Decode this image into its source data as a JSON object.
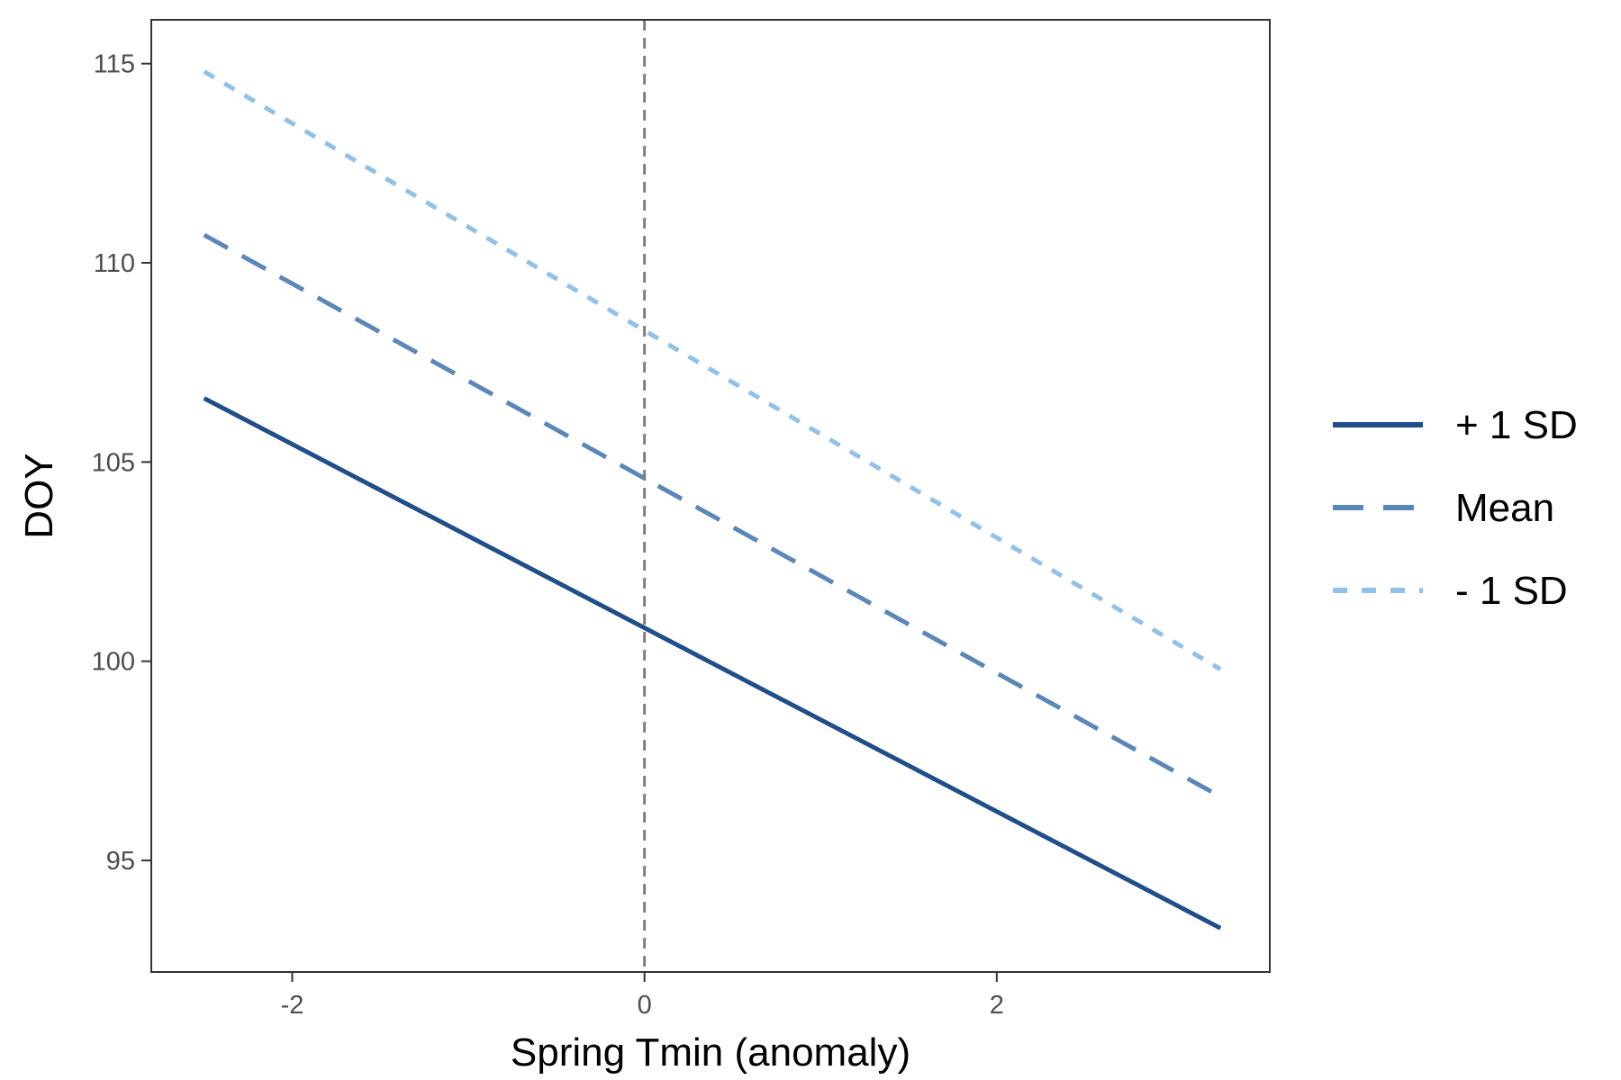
{
  "chart_data": {
    "type": "line",
    "xlabel": "Spring Tmin (anomaly)",
    "ylabel": "DOY",
    "xlim": [
      -2.8,
      3.55
    ],
    "ylim": [
      92.2,
      116.1
    ],
    "x_ticks": [
      -2,
      0,
      2
    ],
    "y_ticks": [
      95,
      100,
      105,
      110,
      115
    ],
    "x_tick_labels": [
      "-2",
      "0",
      "2"
    ],
    "y_tick_labels": [
      "95",
      "100",
      "105",
      "110",
      "115"
    ],
    "reference_line": {
      "orientation": "vertical",
      "x": 0,
      "style": "dashed",
      "color": "#7f7f7f"
    },
    "grid": false,
    "legend_position": "right",
    "series": [
      {
        "name": "+ 1 SD",
        "x": [
          -2.5,
          3.27
        ],
        "y": [
          106.6,
          93.3
        ],
        "color": "#1f4e89",
        "dash": "solid"
      },
      {
        "name": "Mean",
        "x": [
          -2.5,
          3.27
        ],
        "y": [
          110.7,
          96.6
        ],
        "color": "#5b87b8",
        "dash": "dashed"
      },
      {
        "name": "- 1 SD",
        "x": [
          -2.5,
          3.27
        ],
        "y": [
          114.8,
          99.8
        ],
        "color": "#91c0e8",
        "dash": "dotted"
      }
    ]
  }
}
